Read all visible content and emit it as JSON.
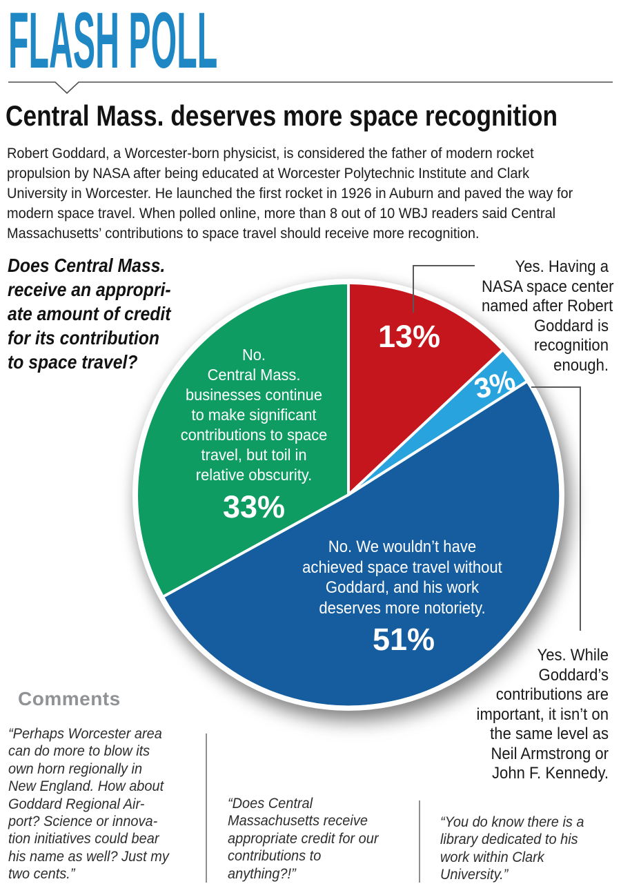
{
  "page": {
    "background": "#ffffff"
  },
  "header": {
    "title": "FLASH POLL",
    "accent_color": "#1f88c4"
  },
  "article": {
    "headline": "Central Mass. deserves more space recognition",
    "intro_lines": [
      "Robert Goddard, a Worcester-born physicist, is considered the father of modern rocket",
      "propulsion by NASA after being educated at Worcester Polytechnic Institute and Clark",
      "University in Worcester. He launched the first rocket in 1926 in Auburn and paved the way for",
      "modern space travel. When polled online, more than 8 out of 10 WBJ readers said Central",
      "Massachusetts’ contributions to space travel should receive more recognition."
    ]
  },
  "poll": {
    "question_lines": [
      "Does Central Mass.",
      "receive an appropri-",
      "ate amount of credit",
      "for its contribution",
      "to space travel?"
    ]
  },
  "chart_data": {
    "type": "pie",
    "start_angle_deg": -90,
    "direction": "clockwise",
    "unit": "percent",
    "slices": [
      {
        "name": "yes-nasa-center",
        "value": 13,
        "pct_label": "13%",
        "color": "#c5161d",
        "label": "Yes. Having a NASA space center named after Robert Goddard is recognition enough.",
        "label_lines": [
          "Yes. Having a",
          "NASA space center",
          "named after Robert",
          "Goddard is",
          "recognition",
          "enough."
        ],
        "label_placement": "callout-top-right"
      },
      {
        "name": "yes-not-same-level",
        "value": 3,
        "pct_label": "3%",
        "color": "#29a3dd",
        "label": "Yes. While Goddard’s contributions are important, it isn’t on the same level as Neil Armstrong or John F. Kennedy.",
        "label_lines": [
          "Yes. While",
          "Goddard’s",
          "contributions are",
          "important, it isn’t on",
          "the same level as",
          "Neil Armstrong or",
          "John F. Kennedy."
        ],
        "label_placement": "callout-bottom-right"
      },
      {
        "name": "no-deserves-notoriety",
        "value": 51,
        "pct_label": "51%",
        "color": "#155d9e",
        "label": "No. We wouldn’t have achieved space travel without Goddard, and his work deserves more notoriety.",
        "label_lines": [
          "No. We wouldn’t have",
          "achieved space travel without",
          "Goddard, and his work",
          "deserves more notoriety."
        ],
        "label_placement": "inside"
      },
      {
        "name": "no-relative-obscurity",
        "value": 33,
        "pct_label": "33%",
        "color": "#0f9c62",
        "label": "No. Central Mass. businesses continue to make significant contributions to space travel, but toil in relative obscurity.",
        "label_lines": [
          "No.",
          "Central Mass.",
          "businesses continue",
          "to make significant",
          "contributions to space",
          "travel, but toil in",
          "relative obscurity."
        ],
        "label_placement": "inside"
      }
    ]
  },
  "comments": {
    "heading": "Comments",
    "items": [
      {
        "lines": [
          "“Perhaps Worcester area",
          "can do more to blow its",
          "own horn regionally in",
          "New England. How about",
          "Goddard Regional Air-",
          "port? Science or innova-",
          "tion initiatives could bear",
          "his name as well? Just my",
          "two cents.”"
        ]
      },
      {
        "lines": [
          "“Does Central",
          "Massachusetts receive",
          "appropriate credit for our",
          "contributions to",
          "anything?!”"
        ]
      },
      {
        "lines": [
          "“You do know there is a",
          "library dedicated to his",
          "work within Clark",
          "University.”"
        ]
      }
    ]
  }
}
